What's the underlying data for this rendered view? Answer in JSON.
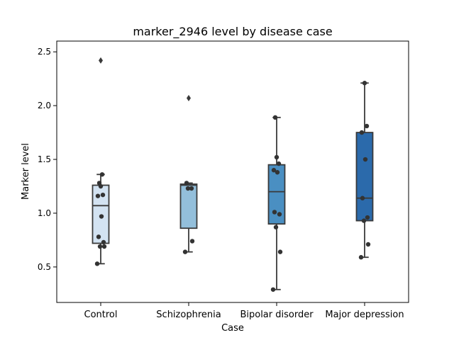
{
  "chart_data": {
    "type": "box",
    "title": "marker_2946 level by disease case",
    "xlabel": "Case",
    "ylabel": "Marker level",
    "ylim": [
      0.17,
      2.6
    ],
    "yticks": [
      0.5,
      1.0,
      1.5,
      2.0,
      2.5
    ],
    "ytick_labels": [
      "0.5",
      "1.0",
      "1.5",
      "2.0",
      "2.5"
    ],
    "grid": false,
    "categories": [
      "Control",
      "Schizophrenia",
      "Bipolar disorder",
      "Major depression"
    ],
    "colors": [
      "#d3e3f2",
      "#93bfdb",
      "#4a8fc2",
      "#2b6aab"
    ],
    "boxes": [
      {
        "category": "Control",
        "whisker_low": 0.53,
        "q1": 0.72,
        "median": 1.07,
        "q3": 1.26,
        "whisker_high": 1.36,
        "outliers": [
          2.42
        ],
        "points": [
          0.53,
          0.69,
          0.69,
          0.73,
          0.78,
          0.97,
          1.16,
          1.17,
          1.25,
          1.28,
          1.36
        ]
      },
      {
        "category": "Schizophrenia",
        "whisker_low": 0.64,
        "q1": 0.86,
        "median": 1.26,
        "q3": 1.27,
        "whisker_high": 1.28,
        "outliers": [
          2.07
        ],
        "points": [
          0.64,
          0.74,
          1.23,
          1.23,
          1.28
        ]
      },
      {
        "category": "Bipolar disorder",
        "whisker_low": 0.29,
        "q1": 0.9,
        "median": 1.2,
        "q3": 1.45,
        "whisker_high": 1.89,
        "outliers": [],
        "points": [
          0.29,
          0.64,
          0.87,
          0.99,
          1.01,
          1.38,
          1.4,
          1.46,
          1.52,
          1.89
        ]
      },
      {
        "category": "Major depression",
        "whisker_low": 0.59,
        "q1": 0.93,
        "median": 1.14,
        "q3": 1.75,
        "whisker_high": 2.21,
        "outliers": [],
        "points": [
          0.59,
          0.71,
          0.93,
          0.96,
          1.14,
          1.5,
          1.75,
          1.81,
          2.21
        ]
      }
    ]
  }
}
